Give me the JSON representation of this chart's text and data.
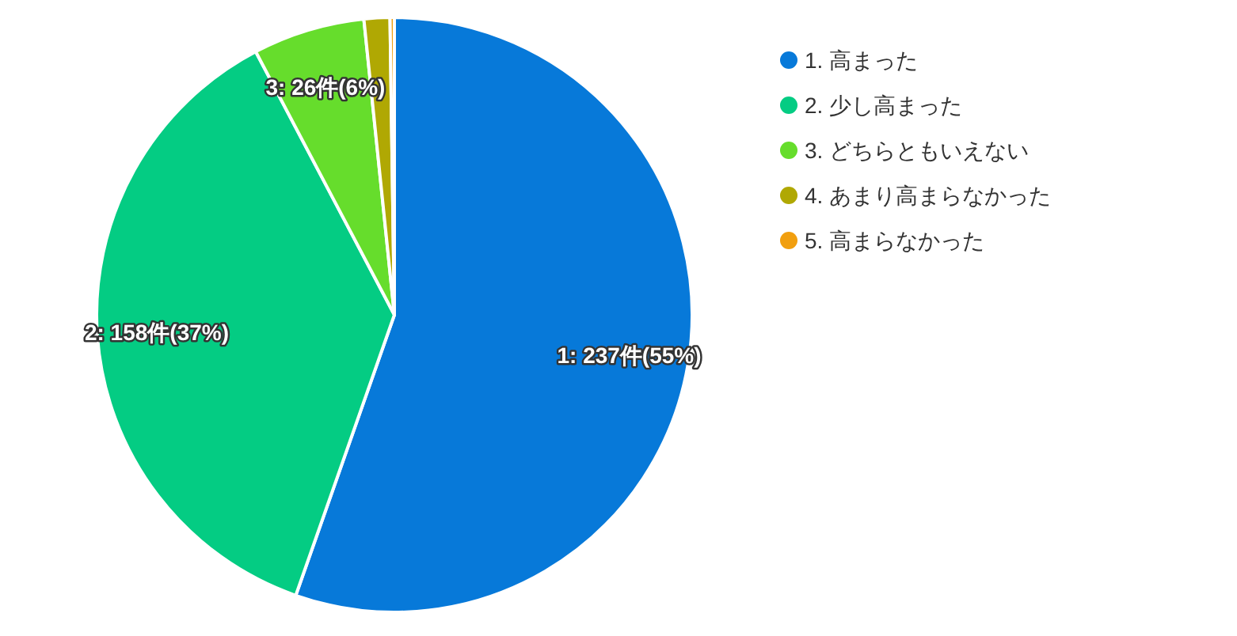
{
  "chart_data": {
    "type": "pie",
    "categories": [
      "1. 高まった",
      "2. 少し高まった",
      "3. どちらともいえない",
      "4. あまり高まらなかった",
      "5. 高まらなかった"
    ],
    "values": [
      237,
      158,
      26,
      6,
      1
    ],
    "colors": [
      "#0779d9",
      "#04cc83",
      "#66dd2c",
      "#b0a803",
      "#f19f0f"
    ],
    "value_labels": [
      "1: 237件(55%)",
      "2: 158件(37%)",
      "3: 26件(6%)",
      null,
      null
    ],
    "legend": "top right"
  }
}
